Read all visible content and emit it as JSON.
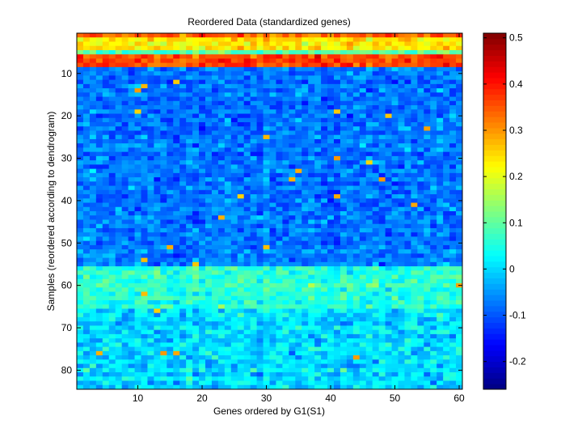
{
  "chart_data": {
    "type": "heatmap",
    "title": "Reordered Data (standardized genes)",
    "xlabel": "Genes ordered by G1(S1)",
    "ylabel": "Samples (reordered according to dendrogram)",
    "n_cols": 60,
    "n_rows": 84,
    "xlim": [
      0.5,
      60.5
    ],
    "ylim": [
      0.5,
      84.5
    ],
    "xticks": [
      10,
      20,
      30,
      40,
      50,
      60
    ],
    "yticks": [
      10,
      20,
      30,
      40,
      50,
      60,
      70,
      80
    ],
    "colormap": "jet",
    "clim": [
      -0.26,
      0.51
    ],
    "colorbar_ticks": [
      -0.2,
      -0.1,
      0,
      0.1,
      0.2,
      0.3,
      0.4,
      0.5
    ],
    "colorbar_tick_labels": [
      "-0.2",
      "-0.1",
      "0",
      "0.1",
      "0.2",
      "0.3",
      "0.4",
      "0.5"
    ],
    "row_blocks_approx_mean": [
      {
        "rows": [
          1,
          1
        ],
        "mean": 0.33,
        "spread": 0.06
      },
      {
        "rows": [
          2,
          4
        ],
        "mean": 0.24,
        "spread": 0.06
      },
      {
        "rows": [
          5,
          5
        ],
        "mean": 0.1,
        "spread": 0.05
      },
      {
        "rows": [
          6,
          8
        ],
        "mean": 0.36,
        "spread": 0.06
      },
      {
        "rows": [
          9,
          55
        ],
        "mean": -0.075,
        "spread": 0.06
      },
      {
        "rows": [
          56,
          65
        ],
        "mean": 0.06,
        "spread": 0.06
      },
      {
        "rows": [
          66,
          84
        ],
        "mean": 0.0,
        "spread": 0.07
      }
    ]
  }
}
